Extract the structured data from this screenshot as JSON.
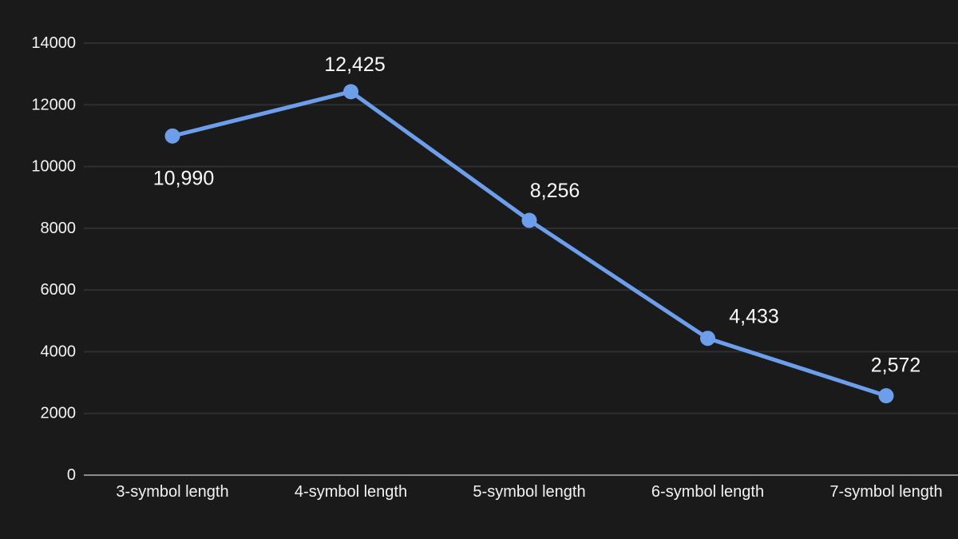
{
  "chart_data": {
    "type": "line",
    "categories": [
      "3-symbol length",
      "4-symbol length",
      "5-symbol length",
      "6-symbol length",
      "7-symbol length"
    ],
    "values": [
      10990,
      12425,
      8256,
      4433,
      2572
    ],
    "data_labels": [
      "10,990",
      "12,425",
      "8,256",
      "4,433",
      "2,572"
    ],
    "title": "",
    "xlabel": "",
    "ylabel": "",
    "ylim": [
      0,
      14000
    ],
    "yticks": [
      0,
      2000,
      4000,
      6000,
      8000,
      10000,
      12000,
      14000
    ],
    "ytick_labels": [
      "0",
      "2000",
      "4000",
      "6000",
      "8000",
      "10000",
      "12000",
      "14000"
    ],
    "grid": true,
    "legend": "none",
    "colors": {
      "background": "#1a1a1b",
      "gridline": "#2f2f31",
      "axis_line": "#8b8c90",
      "series_line": "#6d9eeb",
      "marker_fill": "#6d9eeb",
      "tick_text": "#f3f3f3",
      "data_label_text": "#fafafa"
    }
  }
}
